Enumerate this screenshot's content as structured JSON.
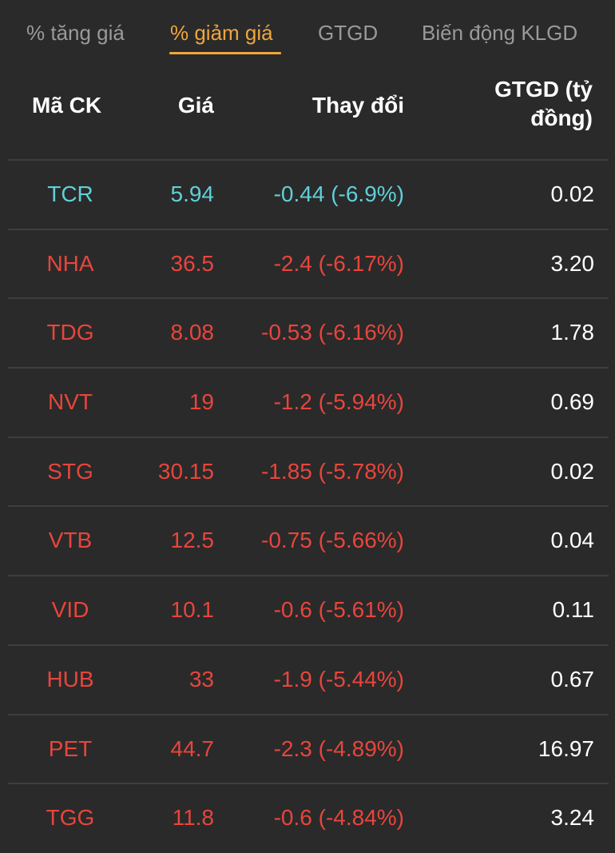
{
  "tabs": [
    {
      "label": "% tăng giá",
      "active": false
    },
    {
      "label": "% giảm giá",
      "active": true
    },
    {
      "label": "GTGD",
      "active": false
    },
    {
      "label": "Biến động KLGD",
      "active": false
    }
  ],
  "headers": {
    "symbol": "Mã CK",
    "price": "Giá",
    "change": "Thay đổi",
    "value": "GTGD (tỷ đồng)"
  },
  "colors": {
    "accent": "#f0a53c",
    "reference": "#5fd0d8",
    "down": "#e8453c",
    "background": "#2a2a2a"
  },
  "rows": [
    {
      "symbol": "TCR",
      "price": "5.94",
      "change": "-0.44 (-6.9%)",
      "value": "0.02",
      "status": "ref"
    },
    {
      "symbol": "NHA",
      "price": "36.5",
      "change": "-2.4 (-6.17%)",
      "value": "3.20",
      "status": "down"
    },
    {
      "symbol": "TDG",
      "price": "8.08",
      "change": "-0.53 (-6.16%)",
      "value": "1.78",
      "status": "down"
    },
    {
      "symbol": "NVT",
      "price": "19",
      "change": "-1.2 (-5.94%)",
      "value": "0.69",
      "status": "down"
    },
    {
      "symbol": "STG",
      "price": "30.15",
      "change": "-1.85 (-5.78%)",
      "value": "0.02",
      "status": "down"
    },
    {
      "symbol": "VTB",
      "price": "12.5",
      "change": "-0.75 (-5.66%)",
      "value": "0.04",
      "status": "down"
    },
    {
      "symbol": "VID",
      "price": "10.1",
      "change": "-0.6 (-5.61%)",
      "value": "0.11",
      "status": "down"
    },
    {
      "symbol": "HUB",
      "price": "33",
      "change": "-1.9 (-5.44%)",
      "value": "0.67",
      "status": "down"
    },
    {
      "symbol": "PET",
      "price": "44.7",
      "change": "-2.3 (-4.89%)",
      "value": "16.97",
      "status": "down"
    },
    {
      "symbol": "TGG",
      "price": "11.8",
      "change": "-0.6 (-4.84%)",
      "value": "3.24",
      "status": "down"
    }
  ]
}
